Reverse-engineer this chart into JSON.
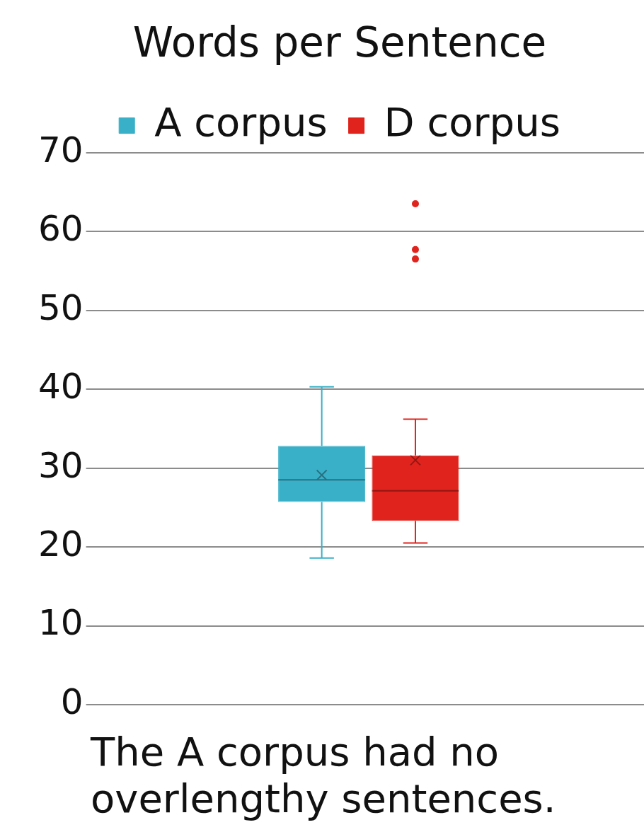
{
  "chart_data": {
    "type": "box",
    "title": "Words per Sentence",
    "categories": [
      null
    ],
    "series": [
      {
        "name": "A corpus",
        "color": "#3ab0c8",
        "boxes": [
          {
            "low": 18.6,
            "q1": 25.7,
            "median": 28.5,
            "q3": 32.8,
            "high": 40.3,
            "mean": 29.1
          }
        ]
      },
      {
        "name": "D corpus",
        "color": "#e0231c",
        "boxes": [
          {
            "low": 20.5,
            "q1": 23.3,
            "median": 27.1,
            "q3": 31.6,
            "high": 36.2,
            "mean": 31.0,
            "outliers": [
              63.5,
              57.7,
              56.5
            ]
          }
        ]
      }
    ],
    "ylim": [
      0,
      70
    ],
    "yticks": [
      0,
      10,
      20,
      30,
      40,
      50,
      60,
      70
    ],
    "grid": "y",
    "legend": "top",
    "annotations": [
      "The A corpus had no overlengthy sentences."
    ]
  }
}
